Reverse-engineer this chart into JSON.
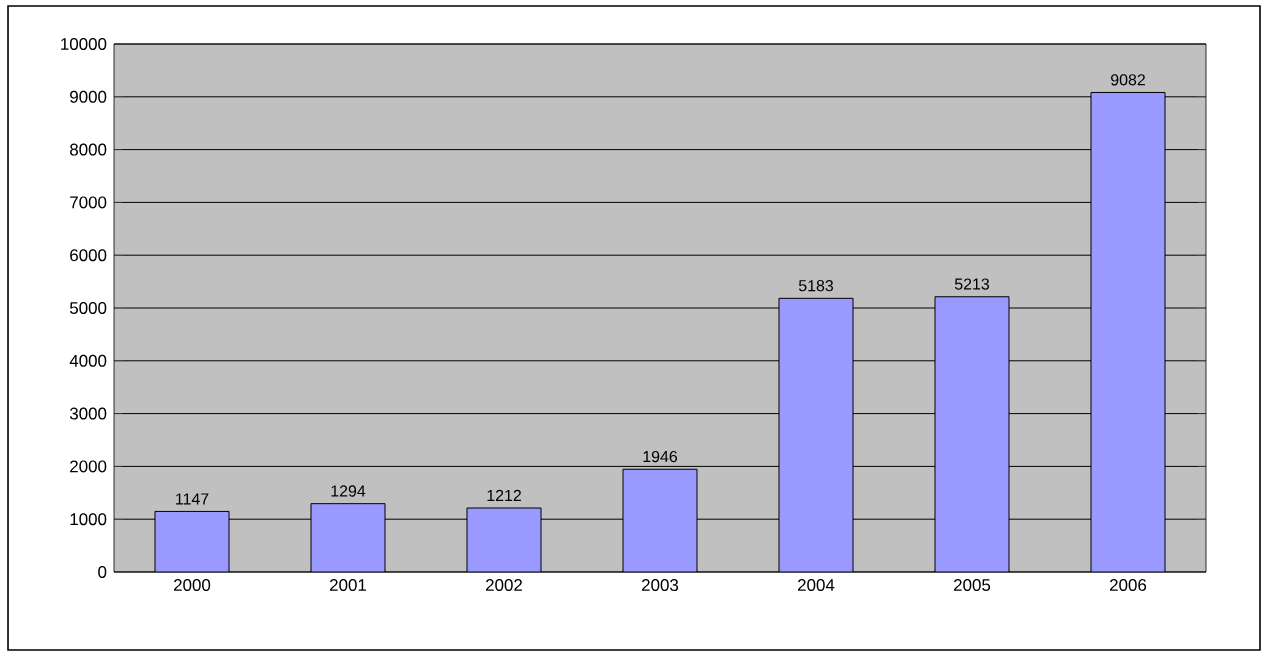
{
  "chart_data": {
    "type": "bar",
    "categories": [
      "2000",
      "2001",
      "2002",
      "2003",
      "2004",
      "2005",
      "2006"
    ],
    "values": [
      1147,
      1294,
      1212,
      1946,
      5183,
      5213,
      9082
    ],
    "color": "#9999ff",
    "ylim": [
      0,
      10000
    ],
    "yticks": [
      0,
      1000,
      2000,
      3000,
      4000,
      5000,
      6000,
      7000,
      8000,
      9000,
      10000
    ],
    "grid": "y",
    "data_labels": true
  }
}
